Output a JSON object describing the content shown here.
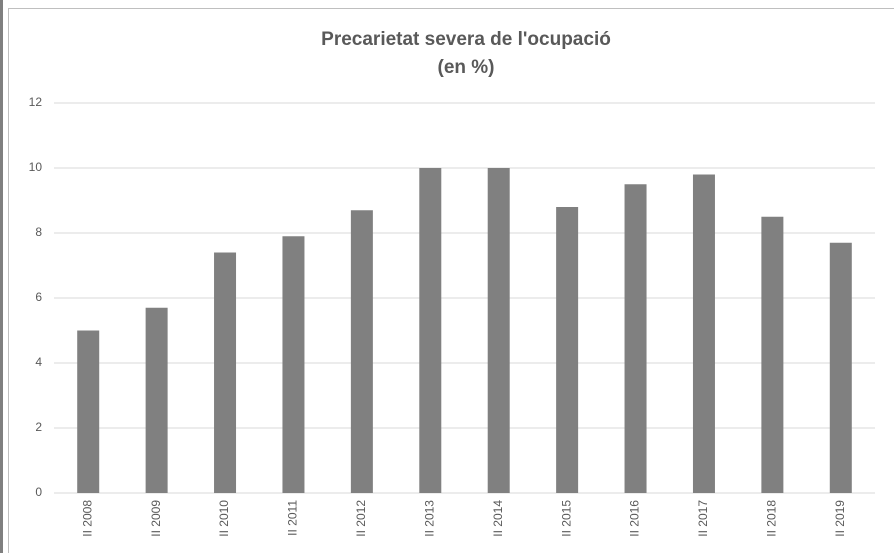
{
  "chart_data": {
    "type": "bar",
    "title": "Precarietat severa de l'ocupació",
    "subtitle": "(en %)",
    "categories": [
      "II 2008",
      "II 2009",
      "II 2010",
      "II 2011",
      "II 2012",
      "II 2013",
      "II 2014",
      "II 2015",
      "II 2016",
      "II 2017",
      "II 2018",
      "II 2019"
    ],
    "values": [
      5.0,
      5.7,
      7.4,
      7.9,
      8.7,
      10.0,
      10.0,
      8.8,
      9.5,
      9.8,
      8.5,
      7.7
    ],
    "color": "#808080",
    "ylim": [
      0,
      12
    ],
    "yticks": [
      0,
      2,
      4,
      6,
      8,
      10,
      12
    ],
    "grid": true
  }
}
